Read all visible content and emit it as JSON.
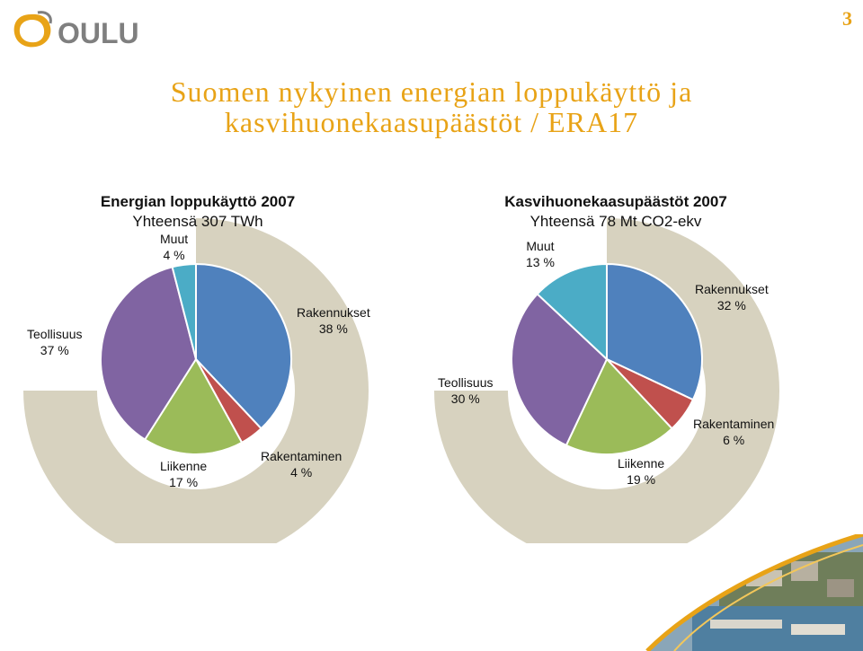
{
  "header": {
    "logo_text": "OULU",
    "page_number": "3"
  },
  "title": {
    "line1": "Suomen nykyinen energian loppukäyttö ja",
    "line2": "kasvihuonekaasupäästöt / ERA17"
  },
  "colors": {
    "accent": "#e8a317",
    "ring": "#d7d2bf",
    "rakennukset": "#4f81bd",
    "rakentaminen": "#c0504d",
    "liikenne": "#9bbb59",
    "teollisuus": "#8064a2",
    "muut": "#4bacc6"
  },
  "chart_data": [
    {
      "type": "pie",
      "title": "Energian loppukäyttö 2007",
      "subtitle": "Yhteensä 307 TWh",
      "slices": [
        {
          "name": "Rakennukset",
          "value": 38,
          "label": "38 %",
          "color": "#4f81bd"
        },
        {
          "name": "Rakentaminen",
          "value": 4,
          "label": "4 %",
          "color": "#c0504d"
        },
        {
          "name": "Liikenne",
          "value": 17,
          "label": "17 %",
          "color": "#9bbb59"
        },
        {
          "name": "Teollisuus",
          "value": 37,
          "label": "37 %",
          "color": "#8064a2"
        },
        {
          "name": "Muut",
          "value": 4,
          "label": "4 %",
          "color": "#4bacc6"
        }
      ]
    },
    {
      "type": "pie",
      "title": "Kasvihuonekaasupäästöt 2007",
      "subtitle": "Yhteensä 78 Mt CO2-ekv",
      "slices": [
        {
          "name": "Rakennukset",
          "value": 32,
          "label": "32 %",
          "color": "#4f81bd"
        },
        {
          "name": "Rakentaminen",
          "value": 6,
          "label": "6 %",
          "color": "#c0504d"
        },
        {
          "name": "Liikenne",
          "value": 19,
          "label": "19 %",
          "color": "#9bbb59"
        },
        {
          "name": "Teollisuus",
          "value": 30,
          "label": "30 %",
          "color": "#8064a2"
        },
        {
          "name": "Muut",
          "value": 13,
          "label": "13 %",
          "color": "#4bacc6"
        }
      ]
    }
  ]
}
